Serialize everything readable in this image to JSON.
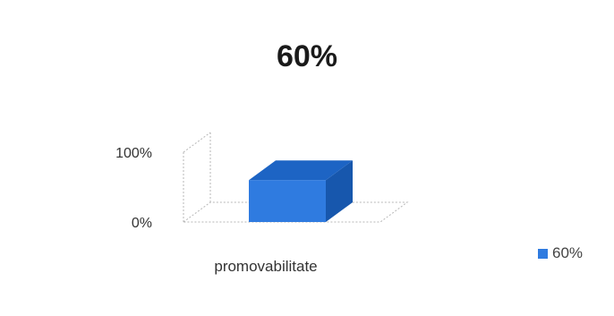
{
  "chart_data": {
    "type": "bar",
    "title": "60%",
    "categories": [
      "promovabilitate"
    ],
    "series": [
      {
        "name": "60%",
        "values": [
          60
        ]
      }
    ],
    "ylim": [
      0,
      100
    ],
    "yticks": [
      "0%",
      "100%"
    ],
    "xlabel": "",
    "ylabel": "",
    "grid": false,
    "legend": "right",
    "style": "3d-bar",
    "colors": {
      "bar_front": "#2f7be0",
      "bar_top": "#1d64c4",
      "bar_side": "#1757ad",
      "axis": "#b7b7b7"
    }
  }
}
